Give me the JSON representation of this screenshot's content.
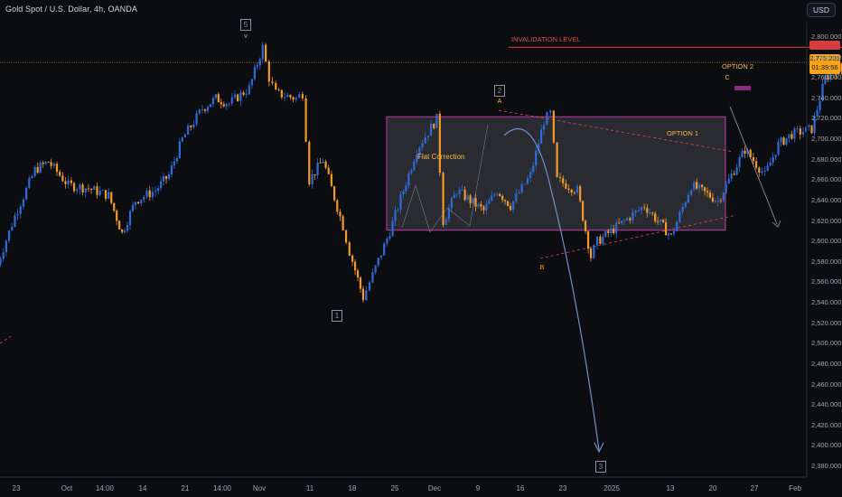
{
  "header": {
    "title": "Gold Spot / U.S. Dollar, 4h, OANDA",
    "currency_button": "USD"
  },
  "price_box": {
    "price": "2,775.205",
    "countdown": "01:39:56",
    "color": "#f7a21b"
  },
  "annotations": {
    "invalidation": "INVALIDATION LEVEL",
    "flat_correction": "Flat Correction",
    "option1": "OPTION 1",
    "option2": "OPTION 2",
    "point_a": "A",
    "point_b": "B",
    "point_c": "C",
    "point_v": "v"
  },
  "wave_labels": [
    {
      "text": "5",
      "x": "Oct 30"
    },
    {
      "text": "1",
      "x": "Nov 14"
    },
    {
      "text": "2",
      "x": "Dec 12"
    },
    {
      "text": "3",
      "x": "Jan 02"
    }
  ],
  "chart_data": {
    "type": "candlestick",
    "title": "Gold Spot / U.S. Dollar, 4h, OANDA",
    "y_unit": "USD",
    "ylim": [
      2370,
      2810
    ],
    "y_ticks": [
      "2,800.000",
      "2,780.000",
      "2,760.000",
      "2,740.000",
      "2,720.000",
      "2,700.000",
      "2,680.000",
      "2,660.000",
      "2,640.000",
      "2,620.000",
      "2,600.000",
      "2,580.000",
      "2,560.000",
      "2,540.000",
      "2,520.000",
      "2,500.000",
      "2,480.000",
      "2,460.000",
      "2,440.000",
      "2,420.000",
      "2,400.000",
      "2,380.000"
    ],
    "x_ticks": [
      "23",
      "Oct",
      "14:00",
      "14",
      "21",
      "14:00",
      "Nov",
      "11",
      "18",
      "25",
      "Dec",
      "9",
      "16",
      "23",
      "2025",
      "13",
      "20",
      "27",
      "Feb"
    ],
    "grid": false,
    "colors": {
      "up": "#2f6bd8",
      "down": "#f39a2a",
      "box": "#c03ab0",
      "invalidation": "#d93c3c",
      "projection": "#6f8fc7"
    },
    "key_levels": {
      "invalidation_level": 2790,
      "current_price": 2775.205
    },
    "flat_correction_box": {
      "top": 2722,
      "bottom": 2611,
      "x_start": "Nov 25",
      "x_end": "Jan 22"
    },
    "price_path": [
      {
        "x": "Sep 20",
        "y": 2570
      },
      {
        "x": "Sep 23",
        "y": 2625
      },
      {
        "x": "Sep 26",
        "y": 2670
      },
      {
        "x": "Sep 28",
        "y": 2678
      },
      {
        "x": "Oct 01",
        "y": 2655
      },
      {
        "x": "Oct 04",
        "y": 2652
      },
      {
        "x": "Oct 07",
        "y": 2645
      },
      {
        "x": "Oct 09",
        "y": 2608
      },
      {
        "x": "Oct 11",
        "y": 2640
      },
      {
        "x": "Oct 14",
        "y": 2650
      },
      {
        "x": "Oct 16",
        "y": 2665
      },
      {
        "x": "Oct 18",
        "y": 2700
      },
      {
        "x": "Oct 21",
        "y": 2730
      },
      {
        "x": "Oct 23",
        "y": 2740
      },
      {
        "x": "Oct 25",
        "y": 2735
      },
      {
        "x": "Oct 28",
        "y": 2750
      },
      {
        "x": "Oct 30",
        "y": 2790
      },
      {
        "x": "Oct 31",
        "y": 2760
      },
      {
        "x": "Nov 01",
        "y": 2745
      },
      {
        "x": "Nov 04",
        "y": 2740
      },
      {
        "x": "Nov 05",
        "y": 2745
      },
      {
        "x": "Nov 06",
        "y": 2660
      },
      {
        "x": "Nov 08",
        "y": 2680
      },
      {
        "x": "Nov 11",
        "y": 2615
      },
      {
        "x": "Nov 12",
        "y": 2590
      },
      {
        "x": "Nov 14",
        "y": 2545
      },
      {
        "x": "Nov 15",
        "y": 2560
      },
      {
        "x": "Nov 18",
        "y": 2610
      },
      {
        "x": "Nov 20",
        "y": 2650
      },
      {
        "x": "Nov 22",
        "y": 2690
      },
      {
        "x": "Nov 25",
        "y": 2720
      },
      {
        "x": "Nov 26",
        "y": 2620
      },
      {
        "x": "Nov 28",
        "y": 2650
      },
      {
        "x": "Dec 02",
        "y": 2630
      },
      {
        "x": "Dec 04",
        "y": 2650
      },
      {
        "x": "Dec 06",
        "y": 2635
      },
      {
        "x": "Dec 09",
        "y": 2665
      },
      {
        "x": "Dec 11",
        "y": 2718
      },
      {
        "x": "Dec 12",
        "y": 2725
      },
      {
        "x": "Dec 13",
        "y": 2660
      },
      {
        "x": "Dec 16",
        "y": 2650
      },
      {
        "x": "Dec 18",
        "y": 2585
      },
      {
        "x": "Dec 19",
        "y": 2600
      },
      {
        "x": "Dec 23",
        "y": 2620
      },
      {
        "x": "Dec 26",
        "y": 2635
      },
      {
        "x": "Dec 30",
        "y": 2605
      },
      {
        "x": "Jan 02",
        "y": 2655
      },
      {
        "x": "Jan 06",
        "y": 2640
      },
      {
        "x": "Jan 08",
        "y": 2665
      },
      {
        "x": "Jan 10",
        "y": 2690
      },
      {
        "x": "Jan 13",
        "y": 2665
      },
      {
        "x": "Jan 15",
        "y": 2695
      },
      {
        "x": "Jan 17",
        "y": 2705
      },
      {
        "x": "Jan 20",
        "y": 2710
      },
      {
        "x": "Jan 22",
        "y": 2760
      },
      {
        "x": "Jan 24",
        "y": 2770
      },
      {
        "x": "Jan 27",
        "y": 2745
      },
      {
        "x": "Jan 28",
        "y": 2760
      },
      {
        "x": "Jan 29",
        "y": 2778
      }
    ]
  }
}
